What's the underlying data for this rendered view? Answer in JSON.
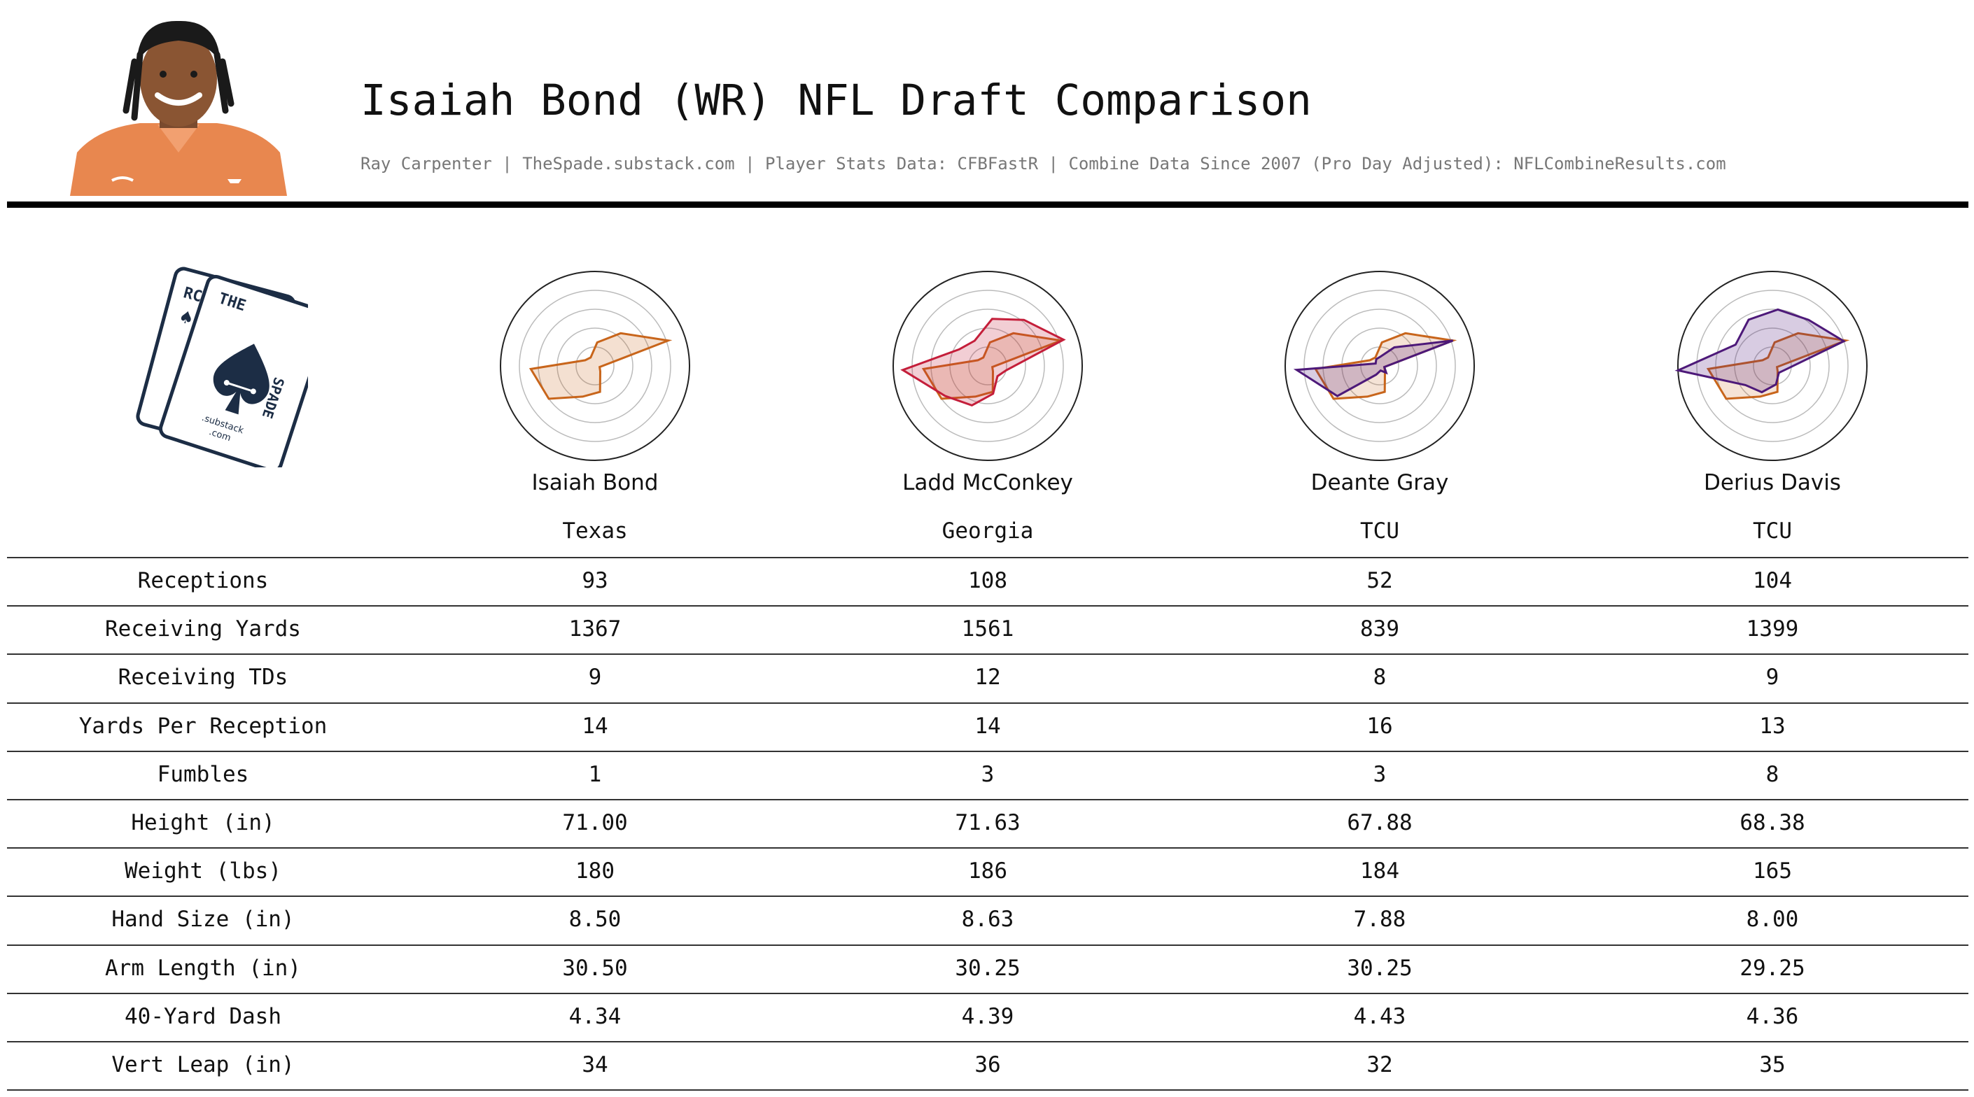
{
  "header": {
    "title": "Isaiah Bond (WR) NFL Draft Comparison",
    "subtitle": "Ray Carpenter | TheSpade.substack.com | Player Stats Data: CFBFastR | Combine Data Since 2007 (Pro Day Adjusted): NFLCombineResults.com"
  },
  "logo": {
    "text_left_card": "RC",
    "text_the": "THE",
    "text_spade": "SPADE",
    "text_substack": ".substack",
    "text_com": ".com"
  },
  "chart_data": {
    "type": "table",
    "radar": {
      "axes": [
        "Receptions",
        "Receiving Yards",
        "Receiving TDs",
        "Yards Per Reception",
        "Fumbles",
        "Height (in)",
        "Weight (lbs)",
        "Hand Size (in)",
        "Arm Length (in)",
        "40-Yard Dash",
        "Vert Leap (in)"
      ],
      "rings": 4,
      "base_player_index": 0,
      "base_color": "#c8651b",
      "notes": "Radar percentiles (0-1) per axis estimated from the figure."
    },
    "players": [
      {
        "name": "Isaiah Bond",
        "school": "Texas",
        "color": "#c8651b",
        "radar_values": [
          0.12,
          0.1,
          0.25,
          0.44,
          0.82,
          0.05,
          0.08,
          0.28,
          0.35,
          0.6,
          0.68
        ]
      },
      {
        "name": "Ladd McConkey",
        "school": "Georgia",
        "color": "#c41e3a",
        "radar_values": [
          0.35,
          0.3,
          0.5,
          0.62,
          0.85,
          0.2,
          0.15,
          0.3,
          0.45,
          0.55,
          0.9
        ]
      },
      {
        "name": "Deante Gray",
        "school": "TCU",
        "color": "#4d1979",
        "radar_values": [
          0.05,
          0.08,
          0.1,
          0.25,
          0.82,
          0.05,
          0.1,
          0.05,
          0.1,
          0.55,
          0.88
        ]
      },
      {
        "name": "Derius Davis",
        "school": "TCU",
        "color": "#4d1979",
        "radar_values": [
          0.45,
          0.55,
          0.6,
          0.62,
          0.8,
          0.15,
          0.1,
          0.2,
          0.3,
          0.35,
          1.0
        ]
      }
    ],
    "rows": [
      {
        "label": "Receptions",
        "values": [
          "93",
          "108",
          "52",
          "104"
        ]
      },
      {
        "label": "Receiving Yards",
        "values": [
          "1367",
          "1561",
          "839",
          "1399"
        ]
      },
      {
        "label": "Receiving TDs",
        "values": [
          "9",
          "12",
          "8",
          "9"
        ]
      },
      {
        "label": "Yards Per Reception",
        "values": [
          "14",
          "14",
          "16",
          "13"
        ]
      },
      {
        "label": "Fumbles",
        "values": [
          "1",
          "3",
          "3",
          "8"
        ]
      },
      {
        "label": "Height (in)",
        "values": [
          "71.00",
          "71.63",
          "67.88",
          "68.38"
        ]
      },
      {
        "label": "Weight (lbs)",
        "values": [
          "180",
          "186",
          "184",
          "165"
        ]
      },
      {
        "label": "Hand Size (in)",
        "values": [
          "8.50",
          "8.63",
          "7.88",
          "8.00"
        ]
      },
      {
        "label": "Arm Length (in)",
        "values": [
          "30.50",
          "30.25",
          "30.25",
          "29.25"
        ]
      },
      {
        "label": "40-Yard Dash",
        "values": [
          "4.34",
          "4.39",
          "4.43",
          "4.36"
        ]
      },
      {
        "label": "Vert Leap (in)",
        "values": [
          "34",
          "36",
          "32",
          "35"
        ]
      }
    ]
  }
}
